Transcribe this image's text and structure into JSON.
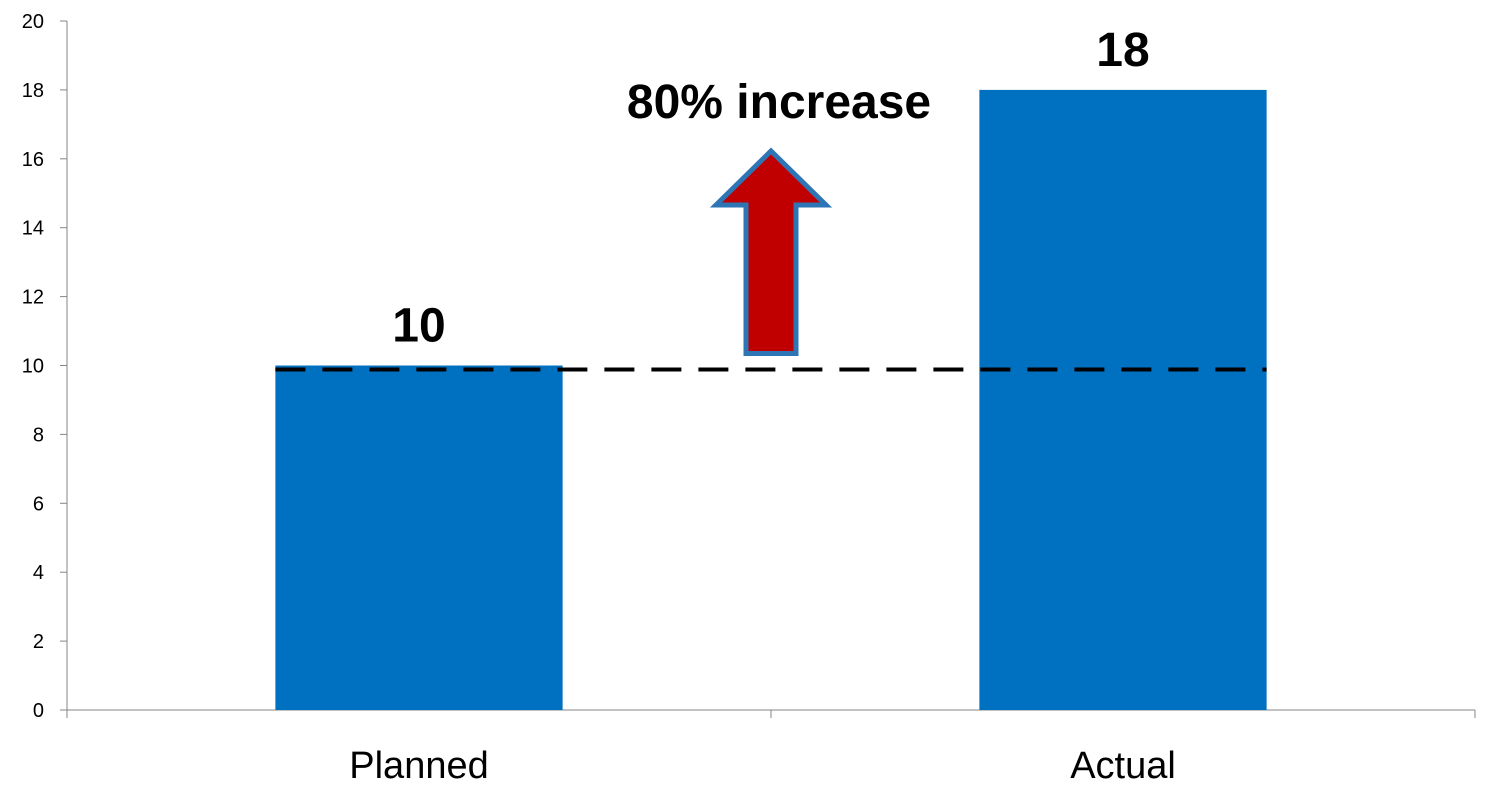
{
  "chart_data": {
    "type": "bar",
    "categories": [
      "Planned",
      "Actual"
    ],
    "values": [
      10,
      18
    ],
    "data_labels": [
      "10",
      "18"
    ],
    "ylim": [
      0,
      20
    ],
    "yticks": [
      "0",
      "2",
      "4",
      "6",
      "8",
      "10",
      "12",
      "14",
      "16",
      "18",
      "20"
    ],
    "grid": false,
    "reference_line": {
      "value": 10,
      "style": "dashed"
    },
    "annotation": "80% increase",
    "colors": {
      "bar": "#0070C0",
      "arrow_fill": "#C00000",
      "arrow_stroke": "#2E75B6",
      "reference_line": "#000000"
    }
  }
}
